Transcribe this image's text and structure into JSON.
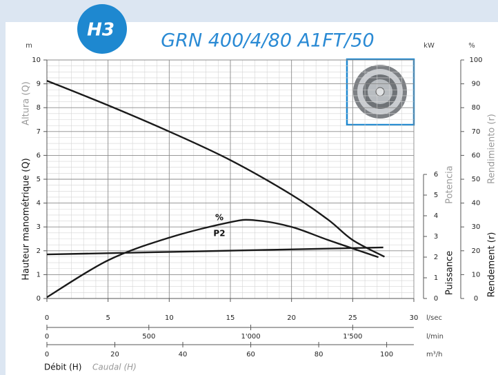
{
  "badge": "H3",
  "chart_data": {
    "type": "line",
    "title": "GRN 400/4/80 A1FT/50",
    "y_label": "Hauteur manométrique (Q)",
    "y_label_alt": "Altura (Q)",
    "y_unit": "m",
    "y2_label": "Puissance",
    "y2_label_alt": "Potencia",
    "y2_unit": "kW",
    "y3_label": "Rendement (r)",
    "y3_label_alt": "Rendimiento (r)",
    "y3_unit": "%",
    "x_label": "Débit (H)",
    "x_label_alt": "Caudal (H)",
    "x_unit": "l/sec",
    "x2_unit": "l/min",
    "x3_unit": "m³/h",
    "xlim": [
      0,
      30
    ],
    "xticks": [
      0,
      5,
      10,
      15,
      20,
      25,
      30
    ],
    "x2lim": [
      0,
      1800
    ],
    "x2ticks": [
      0,
      500,
      {
        "value": 1000,
        "label": "1'000"
      },
      {
        "value": 1500,
        "label": "1'500"
      }
    ],
    "x3lim": [
      0,
      108
    ],
    "x3ticks": [
      0,
      20,
      40,
      60,
      80,
      100
    ],
    "ylim": [
      0,
      10
    ],
    "yticks": [
      0,
      1,
      2,
      3,
      4,
      5,
      6,
      7,
      8,
      9,
      10
    ],
    "y2lim": [
      0,
      6
    ],
    "y2ticks": [
      0,
      1,
      2,
      3,
      4,
      5,
      6
    ],
    "y3lim": [
      0,
      100
    ],
    "y3ticks": [
      0,
      10,
      20,
      30,
      40,
      50,
      60,
      70,
      80,
      90,
      100
    ],
    "grid": true,
    "series": [
      {
        "color": "#1a1a1a",
        "x": [
          0,
          5,
          10,
          15,
          20,
          23,
          25,
          27.6
        ],
        "values": [
          9.13,
          8.1,
          7.0,
          5.8,
          4.35,
          3.3,
          2.45,
          1.75
        ]
      },
      {
        "name": "%",
        "axis": "y3",
        "color": "#1a1a1a",
        "x": [
          0,
          5,
          10,
          15,
          17,
          20,
          23,
          27.1
        ],
        "values": [
          0.5,
          16,
          25.5,
          32,
          32.8,
          30,
          24.5,
          17.3
        ]
      },
      {
        "name": "P2",
        "axis": "y2",
        "color": "#1a1a1a",
        "x": [
          0,
          14,
          27.5
        ],
        "values": [
          2.13,
          2.3,
          2.47
        ]
      }
    ]
  }
}
